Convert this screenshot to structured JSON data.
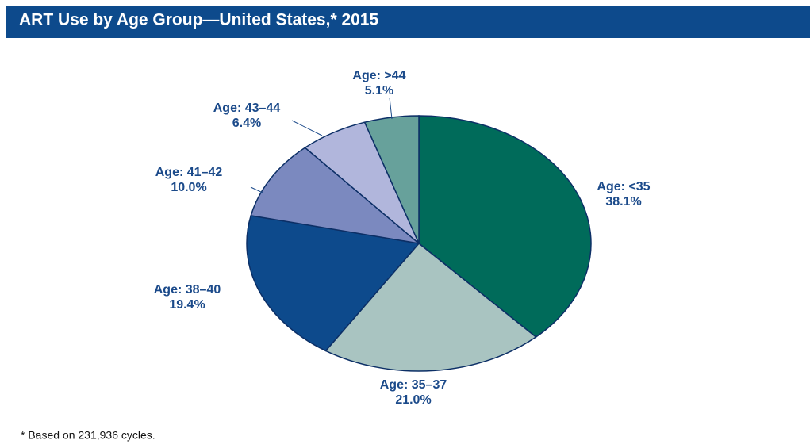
{
  "chart_data": {
    "type": "pie",
    "title": "ART Use by Age Group—United States,* 2015",
    "categories": [
      "Age: <35",
      "Age: 35–37",
      "Age: 38–40",
      "Age: 41–42",
      "Age: 43–44",
      "Age: >44"
    ],
    "values": [
      38.1,
      21.0,
      19.4,
      10.0,
      6.4,
      5.1
    ],
    "value_labels": [
      "38.1%",
      "21.0%",
      "19.4%",
      "10.0%",
      "6.4%",
      "5.1%"
    ],
    "colors": [
      "#006b5a",
      "#a9c4c1",
      "#0d4a8c",
      "#7b89bf",
      "#b1b6dc",
      "#67a19b"
    ],
    "annotation": "* Based on 231,936 cycles."
  }
}
